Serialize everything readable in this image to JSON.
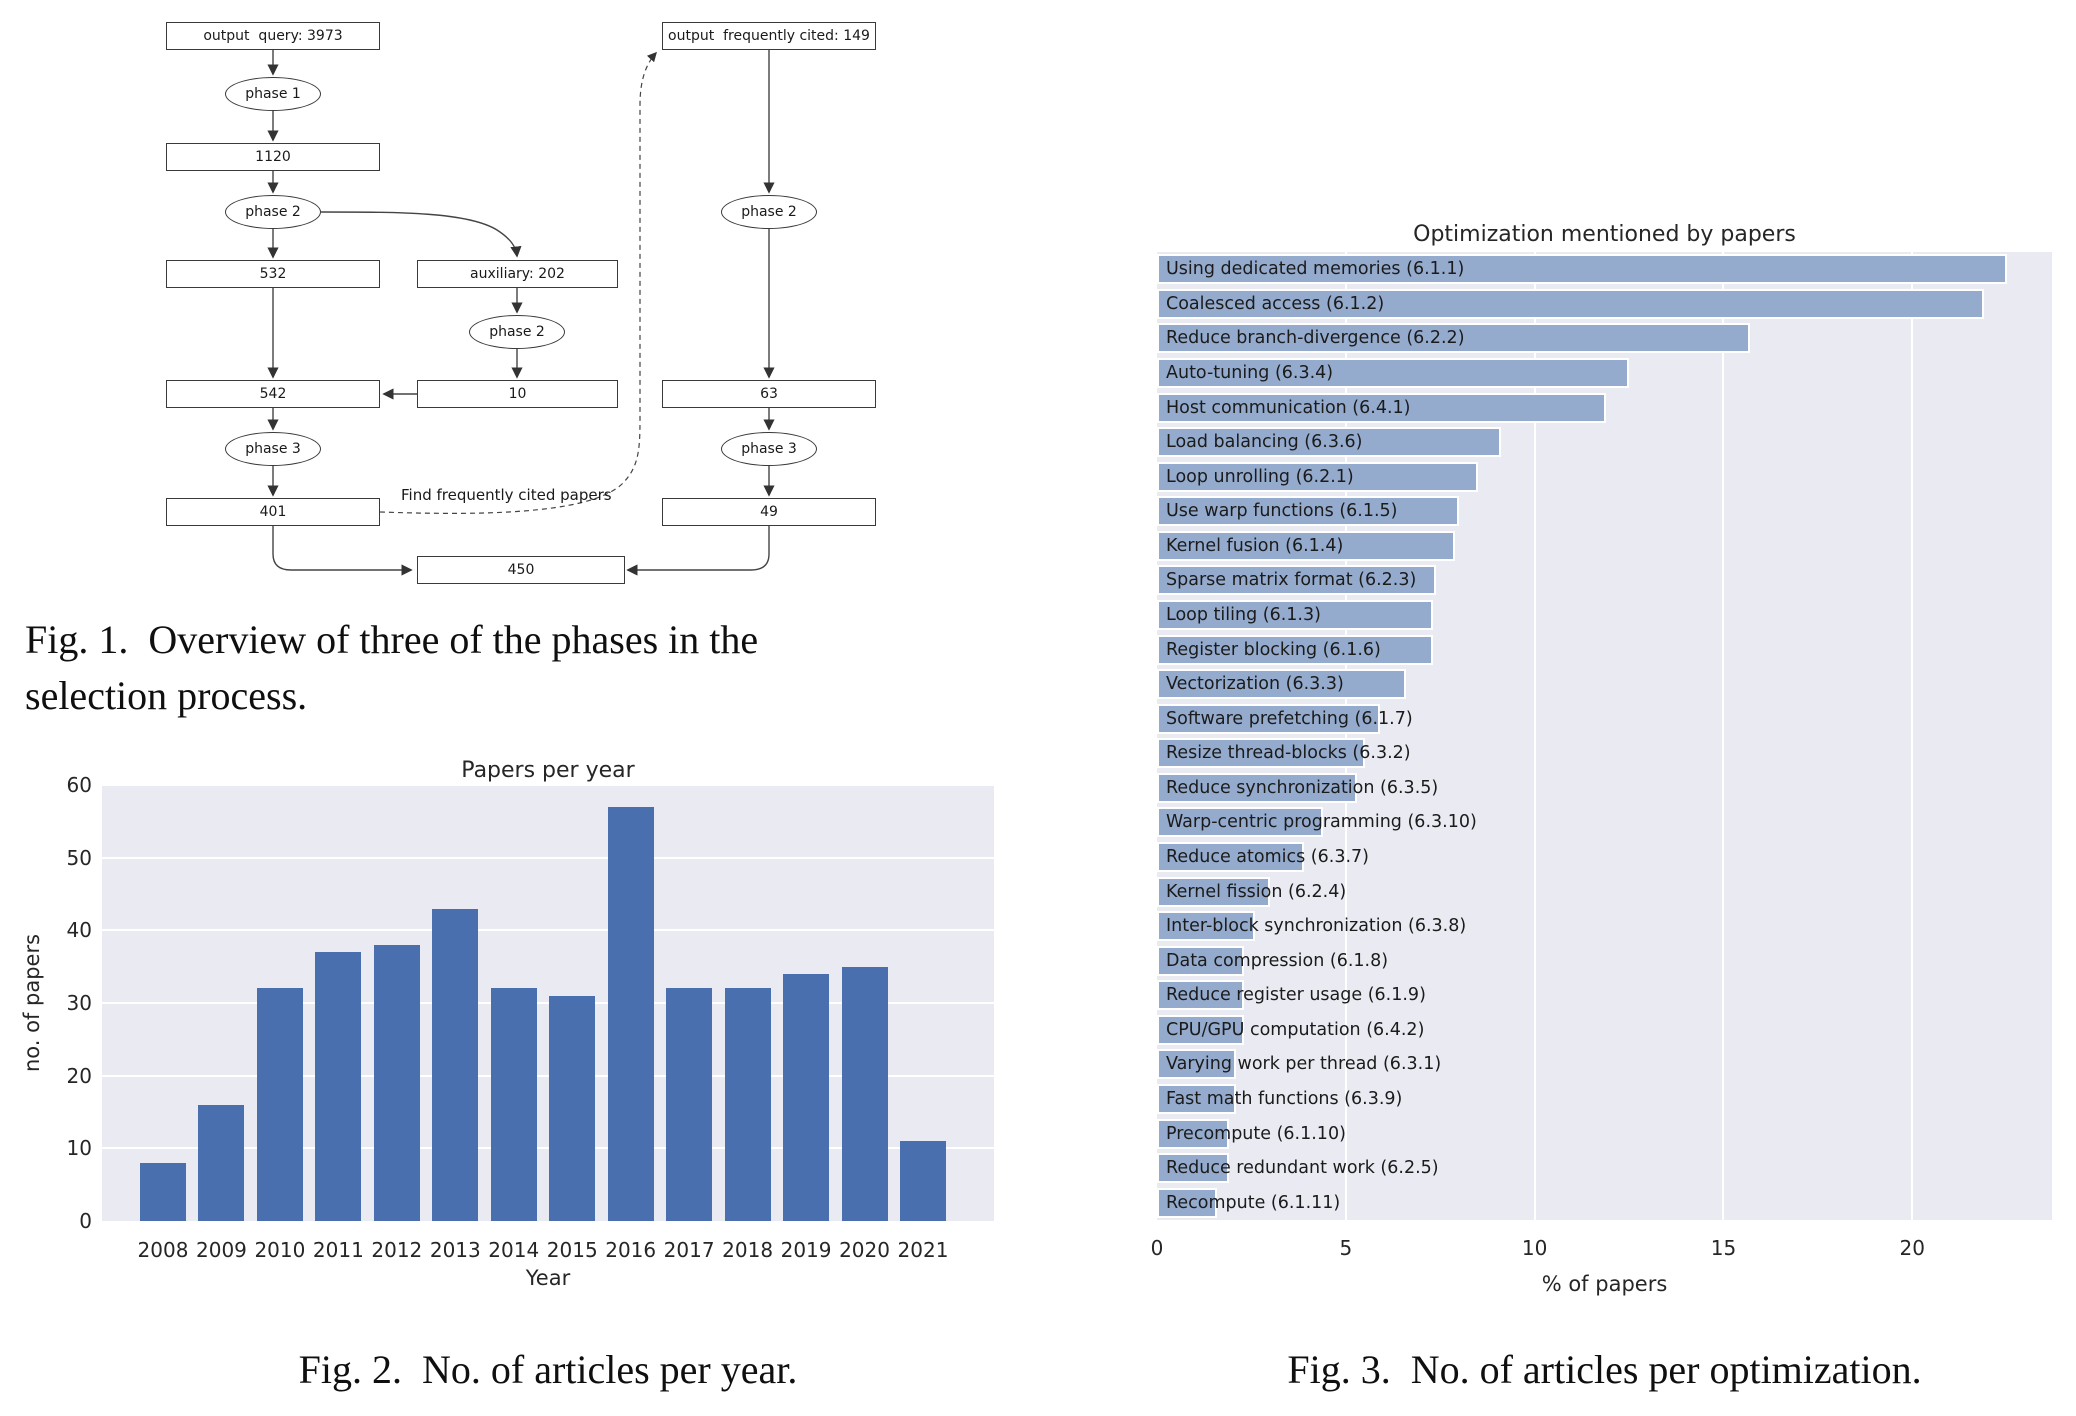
{
  "fig1": {
    "caption": "Fig. 1.  Overview of three of the phases in the\nselection process.",
    "edge_label": "Find frequently cited papers",
    "nodes": {
      "query": "output  query: 3973",
      "phase1": "phase 1",
      "n1120": "1120",
      "phase2a": "phase 2",
      "n532": "532",
      "auxiliary": "auxiliary: 202",
      "phase2b": "phase 2",
      "n542": "542",
      "n10": "10",
      "phase3a": "phase 3",
      "n401": "401",
      "n450": "450",
      "cited": "output  frequently cited: 149",
      "phase2c": "phase 2",
      "n63": "63",
      "phase3b": "phase 3",
      "n49": "49"
    }
  },
  "fig2": {
    "caption": "Fig. 2.  No. of articles per year."
  },
  "fig3": {
    "caption": "Fig. 3.  No. of articles per optimization."
  },
  "chart_data": [
    {
      "type": "bar",
      "orientation": "vertical",
      "title": "Papers per year",
      "xlabel": "Year",
      "ylabel": "no. of papers",
      "categories": [
        "2008",
        "2009",
        "2010",
        "2011",
        "2012",
        "2013",
        "2014",
        "2015",
        "2016",
        "2017",
        "2018",
        "2019",
        "2020",
        "2021"
      ],
      "values": [
        8,
        16,
        32,
        37,
        38,
        43,
        32,
        31,
        57,
        32,
        32,
        34,
        35,
        11
      ],
      "ylim": [
        0,
        60
      ],
      "yticks": [
        0,
        10,
        20,
        30,
        40,
        50,
        60
      ],
      "grid": "horizontal-white",
      "legend": "none",
      "bar_color": "#4a6fae",
      "plot_bg": "#eaeaf2"
    },
    {
      "type": "bar",
      "orientation": "horizontal",
      "title": "Optimization mentioned by papers",
      "xlabel": "% of papers",
      "ylabel": "",
      "categories": [
        "Using dedicated memories (6.1.1)",
        "Coalesced access (6.1.2)",
        "Reduce branch-divergence (6.2.2)",
        "Auto-tuning (6.3.4)",
        "Host communication (6.4.1)",
        "Load balancing (6.3.6)",
        "Loop unrolling (6.2.1)",
        "Use warp functions (6.1.5)",
        "Kernel fusion (6.1.4)",
        "Sparse matrix format (6.2.3)",
        "Loop tiling (6.1.3)",
        "Register blocking (6.1.6)",
        "Vectorization (6.3.3)",
        "Software prefetching (6.1.7)",
        "Resize thread-blocks (6.3.2)",
        "Reduce synchronization (6.3.5)",
        "Warp-centric programming (6.3.10)",
        "Reduce atomics (6.3.7)",
        "Kernel fission (6.2.4)",
        "Inter-block synchronization (6.3.8)",
        "Data compression (6.1.8)",
        "Reduce register usage (6.1.9)",
        "CPU/GPU computation (6.4.2)",
        "Varying work per thread (6.3.1)",
        "Fast math functions (6.3.9)",
        "Precompute (6.1.10)",
        "Reduce redundant work (6.2.5)",
        "Recompute (6.1.11)"
      ],
      "values": [
        22.5,
        21.9,
        15.7,
        12.5,
        11.9,
        9.1,
        8.5,
        8.0,
        7.9,
        7.4,
        7.3,
        7.3,
        6.6,
        5.9,
        5.5,
        5.3,
        4.4,
        3.9,
        3.0,
        2.6,
        2.3,
        2.3,
        2.3,
        2.1,
        2.1,
        1.9,
        1.9,
        1.6
      ],
      "xlim": [
        0,
        23.7
      ],
      "xticks": [
        0,
        5,
        10,
        15,
        20
      ],
      "grid": "vertical-white",
      "legend": "none",
      "label_position": "inside-left",
      "bar_color": "#94abce",
      "plot_bg": "#eaeaf2"
    }
  ],
  "colors": {
    "fig2_bar": "#4a6fae",
    "fig3_bar": "#94abce",
    "plot_background": "#eaeaf2",
    "gridline": "#ffffff",
    "chart_text": "#262626",
    "caption_text": "#0f0f0f",
    "flow_stroke": "#3a3a3a"
  }
}
